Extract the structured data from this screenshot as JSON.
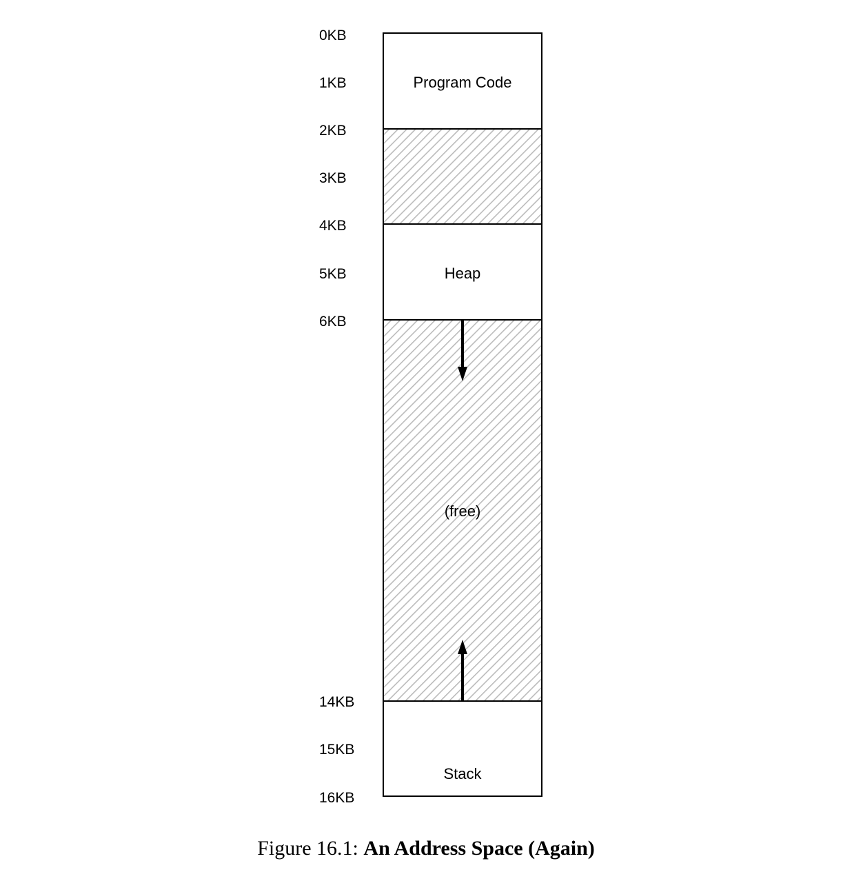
{
  "address_labels": [
    "0KB",
    "1KB",
    "2KB",
    "3KB",
    "4KB",
    "5KB",
    "6KB",
    "14KB",
    "15KB",
    "16KB"
  ],
  "regions": {
    "program_code": "Program Code",
    "heap": "Heap",
    "free": "(free)",
    "stack": "Stack"
  },
  "caption": {
    "prefix": "Figure 16.1: ",
    "title": "An Address Space (Again)"
  },
  "colors": {
    "stroke": "#000000",
    "hatch": "#bbbbbb",
    "background": "#ffffff"
  }
}
